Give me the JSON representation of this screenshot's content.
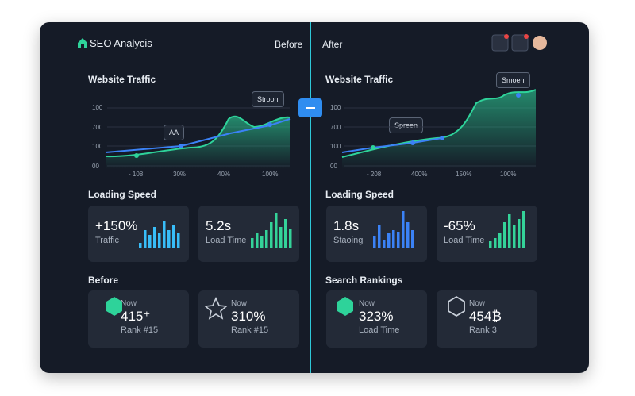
{
  "header": {
    "title": "SEO Analycis",
    "before": "Before",
    "after": "After"
  },
  "left": {
    "traffic": {
      "title": "Website Traffic",
      "yticks": [
        "100",
        "700",
        "100",
        "00"
      ],
      "xticks": [
        "- 108",
        "30%",
        "40%",
        "100%"
      ],
      "tooltips": [
        "AA",
        "Stroon"
      ]
    },
    "speed": {
      "title": "Loading Speed",
      "cards": [
        {
          "value": "+150%",
          "label": "Traffic"
        },
        {
          "value": "5.2s",
          "label": "Load Time"
        }
      ]
    },
    "rankings": {
      "title": "Before",
      "cards": [
        {
          "caption": "Now",
          "value": "415⁺",
          "label": "Rank #15"
        },
        {
          "caption": "Now",
          "value": "310%",
          "label": "Rank #15"
        }
      ]
    }
  },
  "right": {
    "traffic": {
      "title": "Website Traffic",
      "yticks": [
        "100",
        "700",
        "100",
        "00"
      ],
      "xticks": [
        "- 208",
        "400%",
        "150%",
        "100%"
      ],
      "tooltips": [
        "Spreen",
        "Smoen"
      ]
    },
    "speed": {
      "title": "Loading Speed",
      "cards": [
        {
          "value": "1.8s",
          "label": "Staoing"
        },
        {
          "value": "-65%",
          "label": "Load Time"
        }
      ]
    },
    "rankings": {
      "title": "Search Rankings",
      "cards": [
        {
          "caption": "Now",
          "value": "323%",
          "label": "Load Time"
        },
        {
          "caption": "Now",
          "value": "454₿",
          "label": "Rank 3"
        }
      ]
    }
  }
}
